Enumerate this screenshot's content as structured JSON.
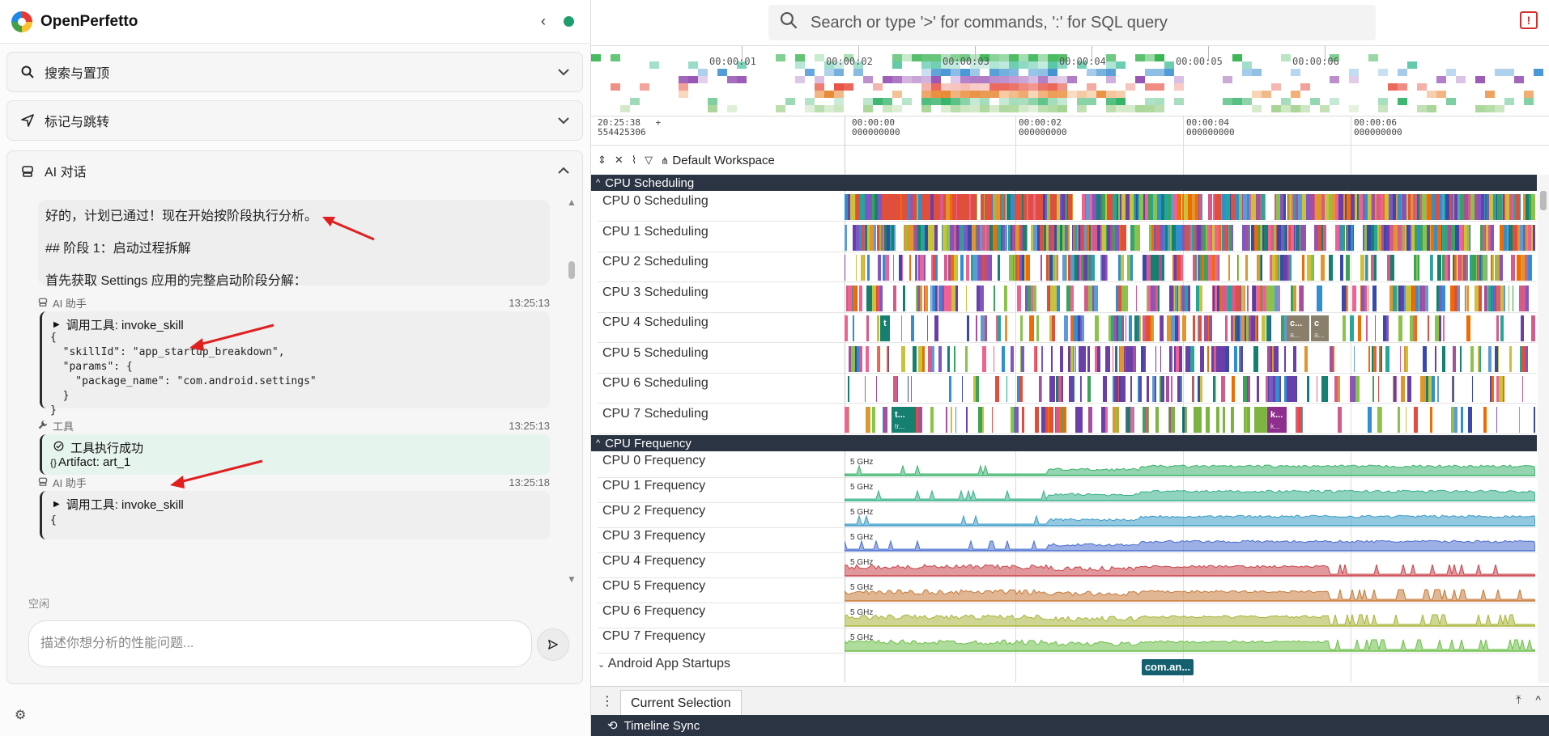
{
  "app": {
    "title": "OpenPerfetto"
  },
  "sidebar": {
    "panels": [
      {
        "title": "搜索与置顶",
        "icon": "search-icon"
      },
      {
        "title": "标记与跳转",
        "icon": "navigation-icon"
      },
      {
        "title": "AI 对话",
        "icon": "robot-icon"
      }
    ],
    "chat": {
      "first_message": {
        "line1": "好的，计划已通过！现在开始按阶段执行分析。",
        "line2": "## 阶段 1：启动过程拆解",
        "line3": "首先获取 Settings 应用的完整启动阶段分解："
      },
      "messages": [
        {
          "who": "AI 助手",
          "time": "13:25:13",
          "tool_call": "调用工具: invoke_skill",
          "code": "{\n  \"skillId\": \"app_startup_breakdown\",\n  \"params\": {\n    \"package_name\": \"com.android.settings\"\n  }\n}"
        },
        {
          "who": "工具",
          "time": "13:25:13",
          "result": "工具执行成功",
          "artifact": "Artifact: art_1"
        },
        {
          "who": "AI 助手",
          "time": "13:25:18",
          "tool_call": "调用工具: invoke_skill",
          "code": "{"
        }
      ],
      "status": "空闲",
      "input_placeholder": "描述你想分析的性能问题..."
    }
  },
  "omnibox": {
    "placeholder": "Search or type '>' for commands, ':' for SQL query"
  },
  "overview": {
    "ticks": [
      "00:00:01",
      "00:00:02",
      "00:00:03",
      "00:00:04",
      "00:00:05",
      "00:00:06"
    ]
  },
  "time_axis": {
    "origin_line1": "20:25:38",
    "origin_line2": "554425306",
    "plus": "+",
    "labels": [
      {
        "l1": "00:00:00",
        "l2": "000000000"
      },
      {
        "l1": "00:00:02",
        "l2": "000000000"
      },
      {
        "l1": "00:00:04",
        "l2": "000000000"
      },
      {
        "l1": "00:00:06",
        "l2": "000000000"
      }
    ]
  },
  "workspace": {
    "name": "Default Workspace"
  },
  "cpu_scheduling": {
    "title": "CPU Scheduling",
    "tracks": [
      "CPU 0 Scheduling",
      "CPU 1 Scheduling",
      "CPU 2 Scheduling",
      "CPU 3 Scheduling",
      "CPU 4 Scheduling",
      "CPU 5 Scheduling",
      "CPU 6 Scheduling",
      "CPU 7 Scheduling"
    ],
    "slice_labels": {
      "cpu4_a": "t",
      "cpu4_b": "c...",
      "cpu4_b2": "a...",
      "cpu4_c": "c",
      "cpu4_c2": "a...",
      "cpu7_a": "t...",
      "cpu7_a2": "tr...",
      "cpu7_b": "k...",
      "cpu7_b2": "k..."
    }
  },
  "cpu_frequency": {
    "title": "CPU Frequency",
    "max_label": "5 GHz",
    "tracks": [
      "CPU 0 Frequency",
      "CPU 1 Frequency",
      "CPU 2 Frequency",
      "CPU 3 Frequency",
      "CPU 4 Frequency",
      "CPU 5 Frequency",
      "CPU 6 Frequency",
      "CPU 7 Frequency"
    ],
    "colors": [
      "#3bb36b",
      "#35b08a",
      "#3a9cc7",
      "#4a6fcf",
      "#c9444a",
      "#c77a3a",
      "#a8b53a",
      "#6cbf48"
    ]
  },
  "startups": {
    "title": "Android App Startups",
    "slice": "com.an..."
  },
  "bottom": {
    "tab": "Current Selection",
    "sync": "Timeline Sync"
  }
}
